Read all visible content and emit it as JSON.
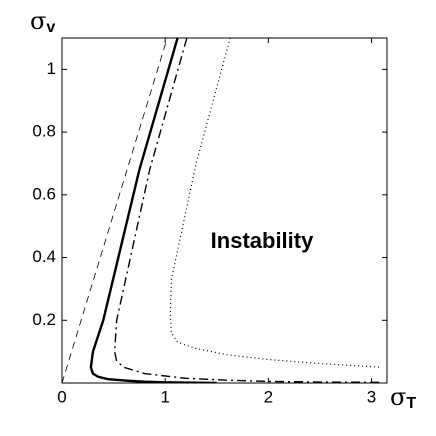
{
  "chart_data": {
    "type": "line",
    "xlabel": {
      "symbol": "σ",
      "sub": "T"
    },
    "ylabel": {
      "symbol": "σ",
      "sub": "v"
    },
    "annotation": "Instability",
    "xlim": [
      0,
      3.15
    ],
    "ylim": [
      0,
      1.1
    ],
    "xticks": [
      0,
      1,
      2,
      3
    ],
    "yticks": [
      0.2,
      0.4,
      0.6,
      0.8,
      1
    ],
    "grid": false,
    "series": [
      {
        "color": "#000000",
        "style": "dashed",
        "width": 0.8,
        "x": [
          0,
          1.02
        ],
        "values": [
          0,
          1.1
        ]
      },
      {
        "color": "#000000",
        "style": "solid",
        "width": 2.4,
        "x": [
          1.12,
          0.75,
          0.4,
          0.3,
          0.28,
          0.3,
          0.35,
          0.45,
          0.6,
          0.8,
          1.0,
          1.5
        ],
        "values": [
          1.1,
          0.68,
          0.2,
          0.1,
          0.05,
          0.03,
          0.02,
          0.012,
          0.008,
          0.004,
          0.002,
          0
        ]
      },
      {
        "color": "#000000",
        "style": "dashdot",
        "width": 1.4,
        "x": [
          1.21,
          0.85,
          0.53,
          0.51,
          0.53,
          0.6,
          0.8,
          1.2,
          1.6,
          2.0,
          2.5,
          3.1
        ],
        "values": [
          1.1,
          0.68,
          0.2,
          0.1,
          0.07,
          0.05,
          0.03,
          0.015,
          0.009,
          0.005,
          0.003,
          0.002
        ]
      },
      {
        "color": "#000000",
        "style": "dotted",
        "width": 1.2,
        "x": [
          1.63,
          1.3,
          1.06,
          1.05,
          1.06,
          1.12,
          1.3,
          1.6,
          2.0,
          2.5,
          3.1
        ],
        "values": [
          1.1,
          0.7,
          0.33,
          0.22,
          0.16,
          0.13,
          0.11,
          0.09,
          0.075,
          0.062,
          0.05
        ]
      }
    ]
  }
}
